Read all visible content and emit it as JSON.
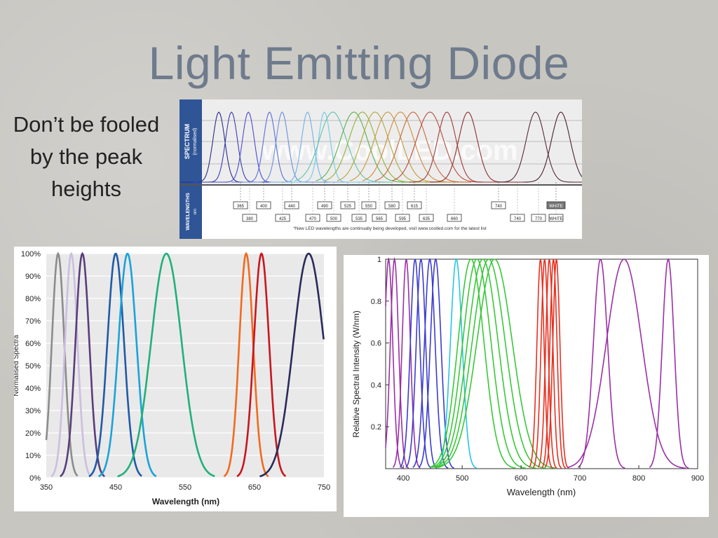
{
  "slide": {
    "title": "Light Emitting Diode",
    "subtitle": "Don’t be fooled by the peak heights"
  },
  "colors": {
    "title": "#6e7b8c",
    "background": "#c8c6c1",
    "panel_blue": "#2f5597"
  },
  "chart_data": [
    {
      "type": "line",
      "panel": "coolLED spectrum strip",
      "side_label_top": "SPECTRUM",
      "side_label_top_sub": "(normalised)",
      "side_label_bottom": "WAVELENGTHS",
      "side_label_bottom_sub": "nm",
      "watermark": "www.CoolLED.com",
      "wavelength_labels_top": [
        "365",
        "400",
        "440",
        "490",
        "525",
        "550",
        "580",
        "615",
        "740",
        "WHITE"
      ],
      "wavelength_labels_bottom": [
        "380",
        "425",
        "470",
        "500",
        "535",
        "565",
        "595",
        "635",
        "660",
        "740",
        "770",
        "WHITE"
      ],
      "footnote": "*New LED wavelengths are continually being developed, visit www.coolled.com for the latest list",
      "series": [
        {
          "peak": 365,
          "color": "#2a2a8a"
        },
        {
          "peak": 380,
          "color": "#3b3bb0"
        },
        {
          "peak": 400,
          "color": "#4b4bd0"
        },
        {
          "peak": 425,
          "color": "#5a6ed8"
        },
        {
          "peak": 440,
          "color": "#6a8ee0"
        },
        {
          "peak": 470,
          "color": "#6fb0e8"
        },
        {
          "peak": 490,
          "color": "#74c8e8"
        },
        {
          "peak": 500,
          "color": "#62c3a6"
        },
        {
          "peak": 525,
          "color": "#5bb04e"
        },
        {
          "peak": 535,
          "color": "#93b23c"
        },
        {
          "peak": 550,
          "color": "#b3a73c"
        },
        {
          "peak": 565,
          "color": "#c79a3c"
        },
        {
          "peak": 580,
          "color": "#d18b3a"
        },
        {
          "peak": 595,
          "color": "#c8683a"
        },
        {
          "peak": 615,
          "color": "#b94c3c"
        },
        {
          "peak": 635,
          "color": "#a23a3a"
        },
        {
          "peak": 660,
          "color": "#8a3030"
        },
        {
          "peak": 740,
          "color": "#5a2a3a"
        },
        {
          "peak": 770,
          "color": "#4a2030"
        }
      ]
    },
    {
      "type": "line",
      "panel": "normalised spectra (%)",
      "xlabel": "Wavelength (nm)",
      "ylabel": "Normalised Spectra",
      "xlim": [
        350,
        750
      ],
      "ylim": [
        0,
        100
      ],
      "x_ticks": [
        "350",
        "450",
        "550",
        "650",
        "750"
      ],
      "y_ticks": [
        "0%",
        "10%",
        "20%",
        "30%",
        "40%",
        "50%",
        "60%",
        "70%",
        "80%",
        "90%",
        "100%"
      ],
      "series": [
        {
          "peak": 367,
          "width": 9,
          "color": "#8c8c8c"
        },
        {
          "peak": 386,
          "width": 9,
          "color": "#cbbfe0"
        },
        {
          "peak": 402,
          "width": 10,
          "color": "#5a3d7a"
        },
        {
          "peak": 450,
          "width": 12,
          "color": "#1f5aa6"
        },
        {
          "peak": 467,
          "width": 13,
          "color": "#1aa3d8"
        },
        {
          "peak": 523,
          "width": 22,
          "color": "#21b07a"
        },
        {
          "peak": 638,
          "width": 10,
          "color": "#f26a1f"
        },
        {
          "peak": 660,
          "width": 11,
          "color": "#c8161e"
        },
        {
          "peak": 728,
          "width": 22,
          "color": "#2a2a5a"
        }
      ]
    },
    {
      "type": "line",
      "panel": "relative spectral intensity",
      "xlabel": "Wavelength (nm)",
      "ylabel": "Relative Spectral Intensity (W/nm)",
      "xlim": [
        370,
        900
      ],
      "ylim": [
        0,
        1
      ],
      "x_ticks": [
        "400",
        "500",
        "600",
        "700",
        "800",
        "900"
      ],
      "y_ticks": [
        "0.2",
        "0.4",
        "0.6",
        "0.8",
        "1"
      ],
      "series": [
        {
          "peak": 375,
          "width": 7,
          "color": "#9b2fa6"
        },
        {
          "peak": 385,
          "width": 7,
          "color": "#9b2fa6"
        },
        {
          "peak": 405,
          "width": 7,
          "color": "#9b2fa6"
        },
        {
          "peak": 420,
          "width": 8,
          "color": "#3b3bd0"
        },
        {
          "peak": 430,
          "width": 8,
          "color": "#3b3bd0"
        },
        {
          "peak": 445,
          "width": 9,
          "color": "#3b3bd0"
        },
        {
          "peak": 455,
          "width": 9,
          "color": "#3b3bd0"
        },
        {
          "peak": 490,
          "width": 10,
          "color": "#25c7e0"
        },
        {
          "peak": 515,
          "width": 22,
          "color": "#38c838"
        },
        {
          "peak": 525,
          "width": 24,
          "color": "#38c838"
        },
        {
          "peak": 535,
          "width": 26,
          "color": "#38c838"
        },
        {
          "peak": 545,
          "width": 28,
          "color": "#38c838"
        },
        {
          "peak": 555,
          "width": 30,
          "color": "#38c838"
        },
        {
          "peak": 633,
          "width": 6,
          "color": "#e63020"
        },
        {
          "peak": 640,
          "width": 6,
          "color": "#e63020"
        },
        {
          "peak": 648,
          "width": 6,
          "color": "#e63020"
        },
        {
          "peak": 655,
          "width": 6,
          "color": "#e63020"
        },
        {
          "peak": 660,
          "width": 6,
          "color": "#e63020"
        },
        {
          "peak": 735,
          "width": 12,
          "color": "#9b2fa6"
        },
        {
          "peak": 775,
          "width": 30,
          "color": "#9b2fa6"
        },
        {
          "peak": 850,
          "width": 10,
          "color": "#9b2fa6"
        }
      ]
    }
  ]
}
